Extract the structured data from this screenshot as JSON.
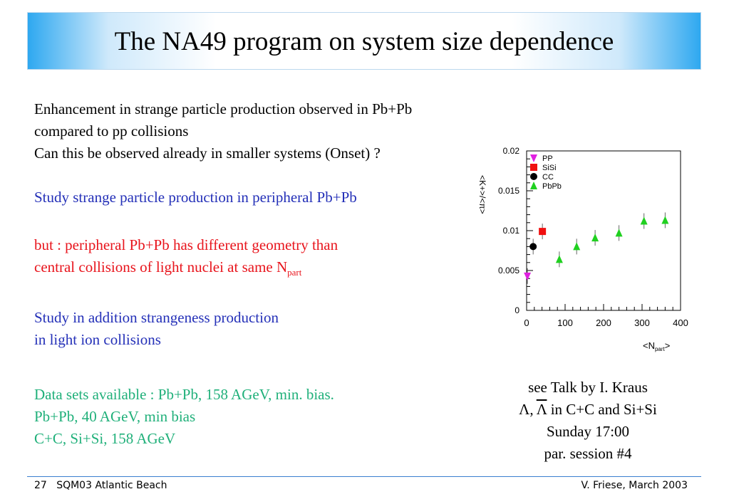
{
  "title": "The NA49 program on system size dependence",
  "intro": {
    "line1": "Enhancement in strange particle production observed in Pb+Pb",
    "line2": "compared to pp collisions",
    "line3": "Can this be observed already in smaller systems (Onset) ?"
  },
  "study1": "Study strange particle production in peripheral Pb+Pb",
  "caveat": {
    "line1": "but : peripheral Pb+Pb has different geometry than",
    "line2": "central collisions of light nuclei at same N",
    "line2_sub": "part"
  },
  "study2": {
    "line1": "Study in addition strangeness production",
    "line2": "in light ion collisions"
  },
  "datasets": {
    "line1": "Data sets available :  Pb+Pb, 158 AGeV, min. bias.",
    "line2": "Pb+Pb, 40 AGeV, min bias",
    "line3": "C+C, Si+Si, 158 AGeV"
  },
  "talk": {
    "line1": "see Talk by I. Kraus",
    "line2_a": "Λ, ",
    "line2_b": "Λ",
    "line2_c": " in C+C and Si+Si",
    "line3": "Sunday 17:00",
    "line4": "par. session #4"
  },
  "footer": {
    "page": "27",
    "conference": "SQM03 Atlantic Beach",
    "author": "V. Friese, March 2003"
  },
  "chart_data": {
    "type": "scatter",
    "xlabel": "<N",
    "xlabel_sub": "part",
    "xlabel_end": ">",
    "ylabel": "<K+>/<π>",
    "xlim": [
      0,
      400
    ],
    "ylim": [
      0,
      0.02
    ],
    "xticks": [
      "0",
      "100",
      "200",
      "300",
      "400"
    ],
    "yticks": [
      "0",
      "0.005",
      "0.01",
      "0.015",
      "0.02"
    ],
    "legend_position": "top-left",
    "series": [
      {
        "name": "PP",
        "marker": "triangle-down",
        "color": "#e020e0",
        "points": [
          [
            2,
            0.0043
          ]
        ]
      },
      {
        "name": "SiSi",
        "marker": "square",
        "color": "#f01010",
        "points": [
          [
            41,
            0.0099
          ]
        ]
      },
      {
        "name": "CC",
        "marker": "circle",
        "color": "#000000",
        "points": [
          [
            17,
            0.008
          ]
        ]
      },
      {
        "name": "PbPb",
        "marker": "triangle-up",
        "color": "#20d020",
        "points": [
          [
            85,
            0.0064
          ],
          [
            130,
            0.008
          ],
          [
            178,
            0.0091
          ],
          [
            240,
            0.0097
          ],
          [
            305,
            0.0112
          ],
          [
            360,
            0.0113
          ]
        ]
      }
    ]
  }
}
